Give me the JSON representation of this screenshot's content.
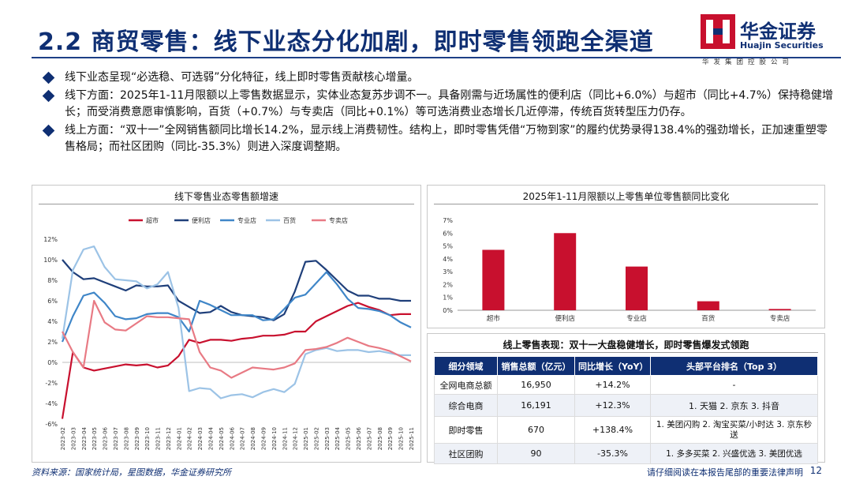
{
  "header": {
    "title": "2.2 商贸零售：线下业态分化加剧，即时零售领跑全渠道",
    "brand_cn": "华金证券",
    "brand_en": "Huajin Securities",
    "brand_sub": "华发集团控股公司"
  },
  "bullets": [
    "线下业态呈现“必选稳、可选弱”分化特征，线上即时零售贡献核心增量。",
    "线下方面：2025年1-11月限额以上零售数据显示，实体业态复苏步调不一。具备刚需与近场属性的便利店（同比+6.0%）与超市（同比+4.7%）保持稳健增长；而受消费意愿审慎影响，百货（+0.7%）与专卖店（同比+0.1%）等可选消费业态增长几近停滞，传统百货转型压力仍存。",
    "线上方面：“双十一”全网销售额同比增长14.2%，显示线上消费韧性。结构上，即时零售凭借“万物到家”的履约优势录得138.4%的强劲增长，正加速重塑零售格局；而社区团购（同比-35.3%）则进入深度调整期。"
  ],
  "colors": {
    "brand": "#0f2f73",
    "supermarket": "#c8102e",
    "convenience": "#1f3f7a",
    "specialty": "#3f86c8",
    "department": "#9cc3e6",
    "specialty_store": "#e87a84",
    "bar": "#c8102e"
  },
  "chart_data": [
    {
      "type": "line",
      "title": "线下零售业态零售额增速",
      "ylim": [
        -6,
        12
      ],
      "yticks": [
        "-6%",
        "-4%",
        "-2%",
        "0%",
        "2%",
        "4%",
        "6%",
        "8%",
        "10%",
        "12%"
      ],
      "x": [
        "2023-02",
        "2023-03",
        "2023-04",
        "2023-05",
        "2023-06",
        "2023-07",
        "2023-08",
        "2023-09",
        "2023-10",
        "2023-11",
        "2023-12",
        "2024-01",
        "2024-02",
        "2024-03",
        "2024-04",
        "2024-05",
        "2024-06",
        "2024-07",
        "2024-08",
        "2024-09",
        "2024-10",
        "2024-11",
        "2024-12",
        "2025-01",
        "2025-02",
        "2025-03",
        "2025-04",
        "2025-05",
        "2025-06",
        "2025-07",
        "2025-08",
        "2025-09",
        "2025-10",
        "2025-11"
      ],
      "xticks": [
        "2023-02",
        "2023-04",
        "2023-06",
        "2023-08",
        "2023-10",
        "2023-12",
        "2024-02",
        "2024-04",
        "2024-06",
        "2024-08",
        "2024-10",
        "2024-12",
        "2025-02",
        "2025-04",
        "2025-06",
        "2025-08",
        "2025-10",
        "2024-01",
        "2024-03",
        "2024-05",
        "2024-07",
        "2024-09",
        "2024-11",
        "2025-03",
        "2025-05",
        "2025-07",
        "2025-09",
        "2025-11",
        "2023-03",
        "2023-05",
        "2023-07",
        "2023-09",
        "2023-11",
        "2025-01"
      ],
      "xtick_labels": [
        "2023-02",
        "2023-03",
        "2023-04",
        "2023-05",
        "2023-06",
        "2023-07",
        "2023-08",
        "2023-09",
        "2023-10",
        "2023-11",
        "2023-12",
        "2024-01",
        "2024-02",
        "2024-03",
        "2024-04",
        "2024-05",
        "2024-06",
        "2024-07",
        "2024-08",
        "2024-09",
        "2024-10",
        "2024-11",
        "2024-12",
        "2025-01",
        "2025-02",
        "2025-03",
        "2025-04",
        "2025-05",
        "2025-06",
        "2025-07",
        "2025-08",
        "2025-09",
        "2025-10",
        "2025-11"
      ],
      "legend": "top",
      "series": [
        {
          "name": "超市",
          "values": [
            -5.5,
            1.0,
            -0.5,
            -0.8,
            -0.6,
            -0.4,
            -0.2,
            -0.3,
            -0.2,
            -0.5,
            -0.3,
            0.6,
            2.2,
            1.9,
            2.2,
            2.2,
            2.1,
            2.3,
            2.4,
            2.6,
            2.6,
            2.7,
            3.0,
            3.0,
            4.0,
            4.5,
            5.0,
            5.5,
            5.8,
            5.4,
            5.1,
            4.6,
            4.7,
            4.7
          ]
        },
        {
          "name": "便利店",
          "values": [
            10.0,
            8.8,
            8.1,
            8.2,
            7.8,
            7.4,
            7.0,
            7.5,
            7.4,
            7.4,
            7.5,
            6.0,
            5.4,
            4.8,
            4.9,
            5.5,
            4.9,
            4.6,
            4.5,
            4.4,
            4.1,
            4.7,
            6.9,
            9.8,
            9.9,
            9.0,
            8.0,
            7.0,
            6.5,
            6.5,
            6.2,
            6.2,
            6.0,
            6.0
          ]
        },
        {
          "name": "专业店",
          "values": [
            2.0,
            4.5,
            6.5,
            6.8,
            5.8,
            4.5,
            4.2,
            4.3,
            4.7,
            4.8,
            4.8,
            4.4,
            3.0,
            6.0,
            5.6,
            5.1,
            4.6,
            4.6,
            4.6,
            4.1,
            4.2,
            5.2,
            6.3,
            6.6,
            7.7,
            8.8,
            7.6,
            6.2,
            5.3,
            5.2,
            5.0,
            4.6,
            3.9,
            3.4
          ]
        },
        {
          "name": "百货",
          "values": [
            2.3,
            9.0,
            11.0,
            11.3,
            9.3,
            8.1,
            8.0,
            7.9,
            7.2,
            7.6,
            8.8,
            5.3,
            -2.8,
            -2.5,
            -2.6,
            -3.5,
            -3.2,
            -3.1,
            -3.4,
            -2.9,
            -2.6,
            -2.9,
            -2.1,
            0.8,
            1.2,
            1.4,
            1.1,
            1.2,
            1.2,
            1.0,
            1.1,
            0.9,
            0.7,
            0.7
          ]
        },
        {
          "name": "专卖店",
          "values": [
            3.0,
            1.0,
            -0.5,
            6.0,
            3.9,
            3.2,
            3.1,
            3.8,
            4.5,
            4.4,
            4.4,
            4.3,
            4.2,
            1.0,
            -0.5,
            -0.8,
            -1.5,
            -1.0,
            -0.5,
            -0.6,
            -0.7,
            -0.5,
            -0.1,
            1.2,
            1.3,
            1.5,
            1.9,
            2.4,
            2.0,
            1.6,
            1.4,
            1.1,
            0.6,
            0.1
          ]
        }
      ]
    },
    {
      "type": "bar",
      "title": "2025年1-11月限额以上零售单位零售额同比变化",
      "categories": [
        "超市",
        "便利店",
        "专业店",
        "百货",
        "专卖店"
      ],
      "values": [
        4.7,
        6.0,
        3.4,
        0.7,
        0.1
      ],
      "ylim": [
        0,
        7
      ],
      "yticks": [
        "0%",
        "1%",
        "2%",
        "3%",
        "4%",
        "5%",
        "6%",
        "7%"
      ]
    }
  ],
  "table": {
    "title": "线上零售表现：双十一大盘稳健增长，即时零售爆发式领跑",
    "headers": [
      "细分领域",
      "销售总额（亿元）",
      "同比增长（YoY）",
      "头部平台排名（Top 3）"
    ],
    "rows": [
      [
        "全网电商总额",
        "16,950",
        "+14.2%",
        "-"
      ],
      [
        "综合电商",
        "16,191",
        "+12.3%",
        "1. 天猫 2. 京东 3. 抖音"
      ],
      [
        "即时零售",
        "670",
        "+138.4%",
        "1. 美团闪购 2. 淘宝买菜/小时达 3. 京东秒送"
      ],
      [
        "社区团购",
        "90",
        "-35.3%",
        "1. 多多买菜 2. 兴盛优选 3. 美团优选"
      ]
    ]
  },
  "footer": {
    "source": "资料来源：国家统计局，星图数据，华金证券研究所",
    "disclaimer": "请仔细阅读在本报告尾部的重要法律声明",
    "page": "12"
  }
}
